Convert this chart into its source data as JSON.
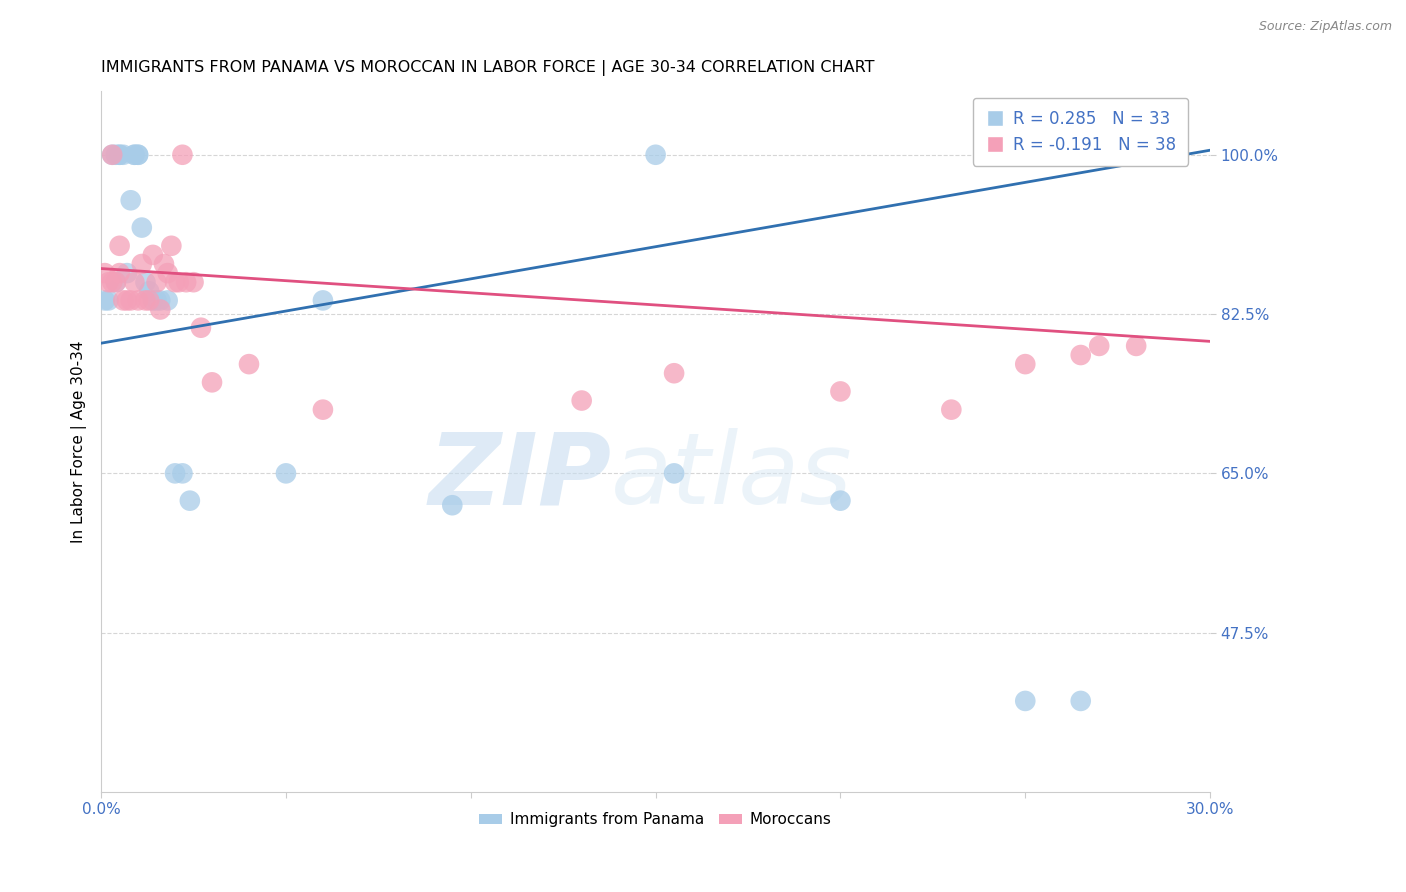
{
  "title": "IMMIGRANTS FROM PANAMA VS MOROCCAN IN LABOR FORCE | AGE 30-34 CORRELATION CHART",
  "source": "Source: ZipAtlas.com",
  "ylabel": "In Labor Force | Age 30-34",
  "xlim": [
    0.0,
    0.3
  ],
  "ylim": [
    0.3,
    1.07
  ],
  "xticks": [
    0.0,
    0.05,
    0.1,
    0.15,
    0.2,
    0.25,
    0.3
  ],
  "xticklabels": [
    "0.0%",
    "",
    "",
    "",
    "",
    "",
    "30.0%"
  ],
  "yticks": [
    1.0,
    0.825,
    0.65,
    0.475
  ],
  "yticklabels": [
    "100.0%",
    "82.5%",
    "65.0%",
    "47.5%"
  ],
  "legend_labels_bottom": [
    "Immigrants from Panama",
    "Moroccans"
  ],
  "panama_R": 0.285,
  "panama_N": 33,
  "moroccan_R": -0.191,
  "moroccan_N": 38,
  "panama_color": "#a8cce8",
  "moroccan_color": "#f4a0b8",
  "panama_line_color": "#3070b0",
  "moroccan_line_color": "#e05080",
  "watermark_zip": "ZIP",
  "watermark_atlas": "atlas",
  "panama_x": [
    0.001,
    0.002,
    0.003,
    0.004,
    0.004,
    0.005,
    0.005,
    0.006,
    0.007,
    0.008,
    0.009,
    0.009,
    0.01,
    0.01,
    0.011,
    0.012,
    0.013,
    0.014,
    0.015,
    0.016,
    0.018,
    0.02,
    0.022,
    0.024,
    0.05,
    0.06,
    0.095,
    0.15,
    0.155,
    0.2,
    0.25,
    0.265,
    0.28
  ],
  "panama_y": [
    0.84,
    0.84,
    1.0,
    1.0,
    0.86,
    1.0,
    1.0,
    1.0,
    0.87,
    0.95,
    1.0,
    1.0,
    1.0,
    1.0,
    0.92,
    0.86,
    0.85,
    0.84,
    0.84,
    0.84,
    0.84,
    0.65,
    0.65,
    0.62,
    0.65,
    0.84,
    0.615,
    1.0,
    0.65,
    0.62,
    0.4,
    0.4,
    1.0
  ],
  "moroccan_x": [
    0.001,
    0.002,
    0.003,
    0.003,
    0.004,
    0.005,
    0.005,
    0.006,
    0.007,
    0.008,
    0.009,
    0.01,
    0.011,
    0.012,
    0.013,
    0.014,
    0.015,
    0.016,
    0.017,
    0.018,
    0.019,
    0.02,
    0.021,
    0.022,
    0.023,
    0.025,
    0.027,
    0.03,
    0.04,
    0.06,
    0.13,
    0.155,
    0.2,
    0.23,
    0.25,
    0.265,
    0.27,
    0.28
  ],
  "moroccan_y": [
    0.87,
    0.86,
    1.0,
    0.86,
    0.86,
    0.9,
    0.87,
    0.84,
    0.84,
    0.84,
    0.86,
    0.84,
    0.88,
    0.84,
    0.84,
    0.89,
    0.86,
    0.83,
    0.88,
    0.87,
    0.9,
    0.86,
    0.86,
    1.0,
    0.86,
    0.86,
    0.81,
    0.75,
    0.77,
    0.72,
    0.73,
    0.76,
    0.74,
    0.72,
    0.77,
    0.78,
    0.79,
    0.79
  ],
  "trendline_blue_y0": 0.793,
  "trendline_blue_y1": 1.005,
  "trendline_pink_y0": 0.875,
  "trendline_pink_y1": 0.795
}
